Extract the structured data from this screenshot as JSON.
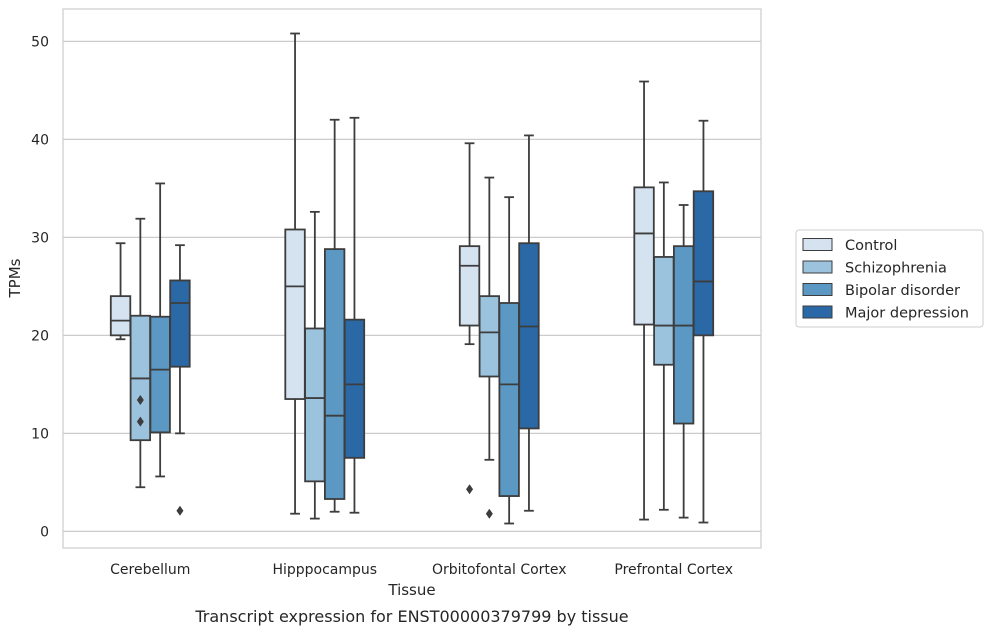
{
  "chart_data": {
    "type": "box",
    "title": "",
    "caption": "Transcript expression for ENST00000379799 by tissue",
    "xlabel": "Tissue",
    "ylabel": "TPMs",
    "ylim": [
      -1.7,
      53.3
    ],
    "yticks": [
      0,
      10,
      20,
      30,
      40,
      50
    ],
    "grid": "horizontal",
    "legend_position": "right",
    "categories": [
      "Cerebellum",
      "Hipppocampus",
      "Orbitofontal Cortex",
      "Prefrontal Cortex"
    ],
    "series": [
      {
        "name": "Control",
        "color": "#d5e2f0",
        "boxes": [
          {
            "whislo": 19.6,
            "q1": 20.0,
            "med": 21.5,
            "q3": 24.0,
            "whishi": 29.4,
            "fliers": []
          },
          {
            "whislo": 1.8,
            "q1": 13.5,
            "med": 25.0,
            "q3": 30.8,
            "whishi": 50.8,
            "fliers": []
          },
          {
            "whislo": 19.1,
            "q1": 21.0,
            "med": 27.1,
            "q3": 29.1,
            "whishi": 39.6,
            "fliers": [
              4.3
            ]
          },
          {
            "whislo": 1.2,
            "q1": 21.1,
            "med": 30.4,
            "q3": 35.1,
            "whishi": 45.9,
            "fliers": []
          }
        ]
      },
      {
        "name": "Schizophrenia",
        "color": "#9bc3dd",
        "boxes": [
          {
            "whislo": 4.5,
            "q1": 9.3,
            "med": 15.6,
            "q3": 22.0,
            "whishi": 31.9,
            "fliers": [
              13.4,
              11.2
            ]
          },
          {
            "whislo": 1.3,
            "q1": 5.1,
            "med": 13.6,
            "q3": 20.7,
            "whishi": 32.6,
            "fliers": []
          },
          {
            "whislo": 7.3,
            "q1": 15.8,
            "med": 20.3,
            "q3": 24.0,
            "whishi": 36.1,
            "fliers": [
              1.8
            ]
          },
          {
            "whislo": 2.2,
            "q1": 17.0,
            "med": 21.0,
            "q3": 28.0,
            "whishi": 35.6,
            "fliers": []
          }
        ]
      },
      {
        "name": "Bipolar disorder",
        "color": "#5b98c4",
        "boxes": [
          {
            "whislo": 5.6,
            "q1": 10.1,
            "med": 16.5,
            "q3": 21.9,
            "whishi": 35.5,
            "fliers": []
          },
          {
            "whislo": 2.0,
            "q1": 3.3,
            "med": 11.8,
            "q3": 28.8,
            "whishi": 42.0,
            "fliers": []
          },
          {
            "whislo": 0.8,
            "q1": 3.6,
            "med": 15.0,
            "q3": 23.3,
            "whishi": 34.1,
            "fliers": []
          },
          {
            "whislo": 1.4,
            "q1": 11.0,
            "med": 21.0,
            "q3": 29.1,
            "whishi": 33.3,
            "fliers": []
          }
        ]
      },
      {
        "name": "Major depression",
        "color": "#2a68a6",
        "boxes": [
          {
            "whislo": 10.0,
            "q1": 16.8,
            "med": 23.3,
            "q3": 25.6,
            "whishi": 29.2,
            "fliers": [
              2.1
            ]
          },
          {
            "whislo": 1.9,
            "q1": 7.5,
            "med": 15.0,
            "q3": 21.6,
            "whishi": 42.2,
            "fliers": []
          },
          {
            "whislo": 2.1,
            "q1": 10.5,
            "med": 20.9,
            "q3": 29.4,
            "whishi": 40.4,
            "fliers": []
          },
          {
            "whislo": 0.9,
            "q1": 20.0,
            "med": 25.5,
            "q3": 34.7,
            "whishi": 41.9,
            "fliers": []
          }
        ]
      }
    ]
  }
}
